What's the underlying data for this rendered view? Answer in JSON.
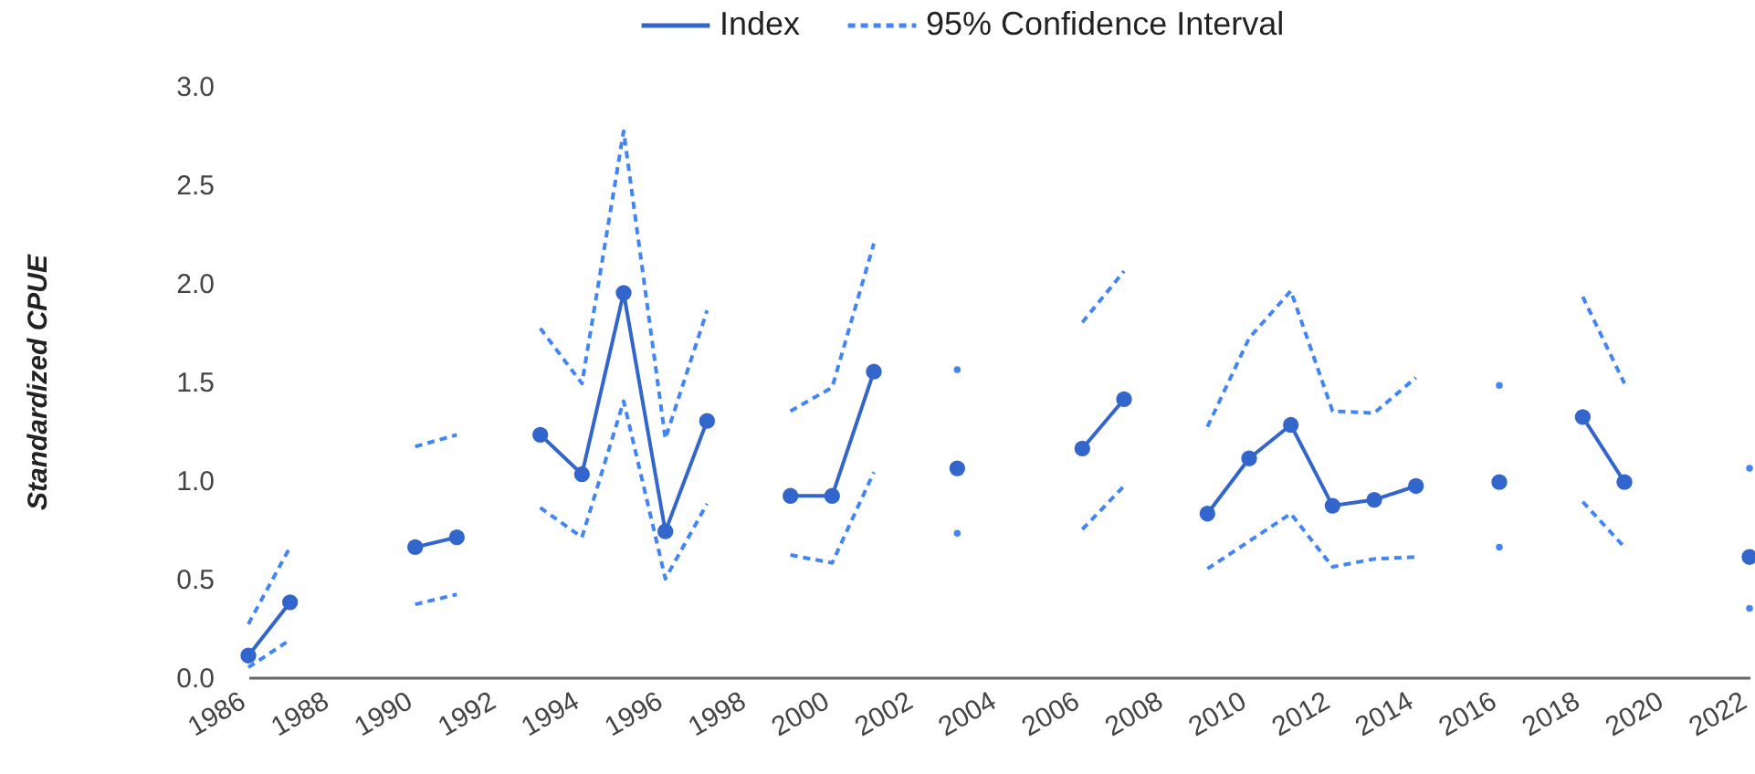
{
  "chart_data": {
    "type": "line",
    "ylabel": "Standardized CPUE",
    "legend": "top",
    "grid": false,
    "x": [
      1986,
      1987,
      1988,
      1989,
      1990,
      1991,
      1992,
      1993,
      1994,
      1995,
      1996,
      1997,
      1998,
      1999,
      2000,
      2001,
      2002,
      2003,
      2004,
      2005,
      2006,
      2007,
      2008,
      2009,
      2010,
      2011,
      2012,
      2013,
      2014,
      2015,
      2016,
      2017,
      2018,
      2019,
      2020,
      2021,
      2022
    ],
    "xlim": [
      1986,
      2022
    ],
    "xticks": [
      1986,
      1988,
      1990,
      1992,
      1994,
      1996,
      1998,
      2000,
      2002,
      2004,
      2006,
      2008,
      2010,
      2012,
      2014,
      2016,
      2018,
      2020,
      2022
    ],
    "ylim": [
      0,
      3
    ],
    "yticks": [
      {
        "value": 0,
        "label": "0.0"
      },
      {
        "value": 0.5,
        "label": "0.5"
      },
      {
        "value": 1,
        "label": "1.0"
      },
      {
        "value": 1.5,
        "label": "1.5"
      },
      {
        "value": 2,
        "label": "2.0"
      },
      {
        "value": 2.5,
        "label": "2.5"
      },
      {
        "value": 3,
        "label": "3.0"
      }
    ],
    "series": [
      {
        "name": "Index",
        "color": "#3366cc",
        "marker": "circle",
        "line_style": "solid",
        "values": [
          0.11,
          0.38,
          null,
          null,
          0.66,
          0.71,
          null,
          1.23,
          1.03,
          1.95,
          0.74,
          1.3,
          null,
          0.92,
          0.92,
          1.55,
          null,
          1.06,
          null,
          null,
          1.16,
          1.41,
          null,
          0.83,
          1.11,
          1.28,
          0.87,
          0.9,
          0.97,
          null,
          0.99,
          null,
          1.32,
          0.99,
          null,
          null,
          0.61
        ]
      },
      {
        "name": "95% Confidence Interval",
        "color": "#4285f4",
        "marker": "none",
        "line_style": "dashed",
        "values": [
          0.27,
          0.66,
          null,
          null,
          1.17,
          1.23,
          null,
          1.77,
          1.49,
          2.77,
          1.21,
          1.86,
          null,
          1.35,
          1.47,
          2.2,
          null,
          1.56,
          null,
          null,
          1.8,
          2.06,
          null,
          1.27,
          1.72,
          1.96,
          1.35,
          1.34,
          1.52,
          null,
          1.48,
          null,
          1.93,
          1.49,
          null,
          null,
          1.06
        ]
      },
      {
        "color": "#4285f4",
        "marker": "none",
        "line_style": "dashed",
        "values": [
          0.05,
          0.19,
          null,
          null,
          0.37,
          0.42,
          null,
          0.86,
          0.71,
          1.4,
          0.5,
          0.88,
          null,
          0.62,
          0.58,
          1.04,
          null,
          0.73,
          null,
          null,
          0.75,
          0.97,
          null,
          0.55,
          0.69,
          0.83,
          0.56,
          0.6,
          0.61,
          null,
          0.66,
          null,
          0.89,
          0.66,
          null,
          null,
          0.35
        ]
      }
    ]
  }
}
